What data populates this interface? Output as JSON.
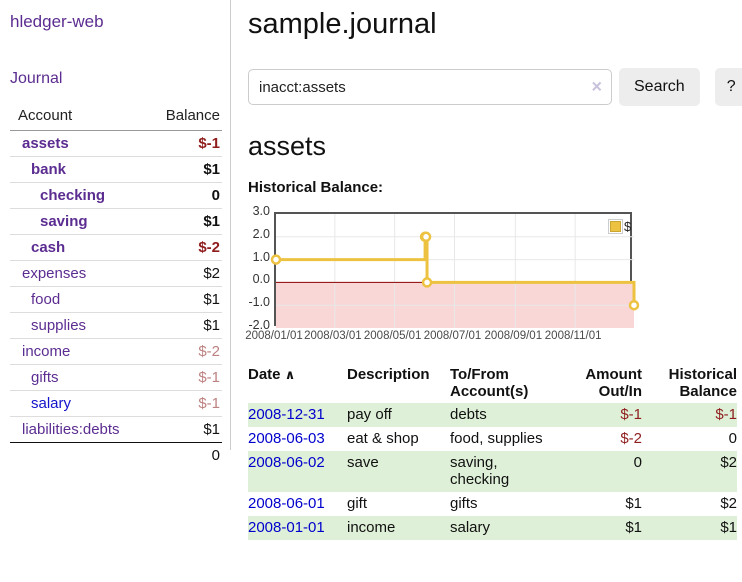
{
  "sidebar": {
    "app_title": "hledger-web",
    "nav": {
      "journal": "Journal"
    },
    "accounts": {
      "header_account": "Account",
      "header_balance": "Balance",
      "rows": [
        {
          "name": "assets",
          "indent": 0,
          "bold": true,
          "balance": "$-1",
          "balance_color": "dark-red"
        },
        {
          "name": "bank",
          "indent": 1,
          "bold": true,
          "balance": "$1",
          "balance_color": "black"
        },
        {
          "name": "checking",
          "indent": 2,
          "bold": true,
          "balance": "0",
          "balance_color": "black"
        },
        {
          "name": "saving",
          "indent": 2,
          "bold": true,
          "balance": "$1",
          "balance_color": "black"
        },
        {
          "name": "cash",
          "indent": 1,
          "bold": true,
          "balance": "$-2",
          "balance_color": "dark-red"
        },
        {
          "name": "expenses",
          "indent": 0,
          "bold": false,
          "balance": "$2",
          "balance_color": "black"
        },
        {
          "name": "food",
          "indent": 1,
          "bold": false,
          "balance": "$1",
          "balance_color": "black"
        },
        {
          "name": "supplies",
          "indent": 1,
          "bold": false,
          "balance": "$1",
          "balance_color": "black"
        },
        {
          "name": "income",
          "indent": 0,
          "bold": false,
          "balance": "$-2",
          "balance_color": "soft-red"
        },
        {
          "name": "gifts",
          "indent": 1,
          "bold": false,
          "balance": "$-1",
          "balance_color": "soft-red"
        },
        {
          "name": "salary",
          "indent": 1,
          "bold": false,
          "link_color": "blue",
          "balance": "$-1",
          "balance_color": "soft-red"
        },
        {
          "name": "liabilities:debts",
          "indent": 0,
          "bold": false,
          "balance": "$1",
          "balance_color": "black"
        }
      ],
      "total": "0"
    }
  },
  "main": {
    "page_title": "sample.journal",
    "search": {
      "value": "inacct:assets",
      "clear_icon": "×",
      "search_button": "Search",
      "help_button": "?"
    },
    "account_heading": "assets",
    "chart_heading": "Historical Balance:"
  },
  "chart_data": {
    "type": "line",
    "title": "Historical Balance",
    "step": true,
    "series": [
      {
        "name": "$",
        "color": "#edc240",
        "points": [
          [
            "2008-01-01",
            1
          ],
          [
            "2008-06-01",
            2
          ],
          [
            "2008-06-02",
            2
          ],
          [
            "2008-06-03",
            0
          ],
          [
            "2008-12-31",
            -1
          ]
        ]
      }
    ],
    "xlim": [
      "2008-01-01",
      "2008-12-31"
    ],
    "ylim": [
      -2,
      3
    ],
    "y_ticks": [
      "3.0",
      "2.0",
      "1.0",
      "0.0",
      "-1.0",
      "-2.0"
    ],
    "x_ticks": [
      {
        "date": "2008-01-01",
        "label": "2008/01/01"
      },
      {
        "date": "2008-03-01",
        "label": "2008/03/01"
      },
      {
        "date": "2008-05-01",
        "label": "2008/05/01"
      },
      {
        "date": "2008-07-01",
        "label": "2008/07/01"
      },
      {
        "date": "2008-09-01",
        "label": "2008/09/01"
      },
      {
        "date": "2008-11-01",
        "label": "2008/11/01"
      }
    ],
    "grid": true,
    "legend_position": "top-right",
    "legend_label": "$",
    "colors": {
      "line": "#edc240",
      "negative_region": "#f9d7d7",
      "zero_line": "#8b0000",
      "grid": "#e8e8e8",
      "border": "#545454"
    }
  },
  "register": {
    "headers": {
      "date": "Date",
      "description": "Description",
      "accounts": "To/From Account(s)",
      "amount": "Amount Out/In",
      "balance": "Historical Balance"
    },
    "sort_icon": "∧",
    "rows": [
      {
        "date": "2008-12-31",
        "description": "pay off",
        "accounts": "debts",
        "amount": "$-1",
        "amount_color": "dark-red",
        "balance": "$-1",
        "balance_color": "dark-red"
      },
      {
        "date": "2008-06-03",
        "description": "eat & shop",
        "accounts": "food, supplies",
        "amount": "$-2",
        "amount_color": "dark-red",
        "balance": "0",
        "balance_color": "black"
      },
      {
        "date": "2008-06-02",
        "description": "save",
        "accounts": "saving,\nchecking",
        "amount": "0",
        "amount_color": "black",
        "balance": "$2",
        "balance_color": "black"
      },
      {
        "date": "2008-06-01",
        "description": "gift",
        "accounts": "gifts",
        "amount": "$1",
        "amount_color": "black",
        "balance": "$2",
        "balance_color": "black"
      },
      {
        "date": "2008-01-01",
        "description": "income",
        "accounts": "salary",
        "amount": "$1",
        "amount_color": "black",
        "balance": "$1",
        "balance_color": "black"
      }
    ]
  }
}
